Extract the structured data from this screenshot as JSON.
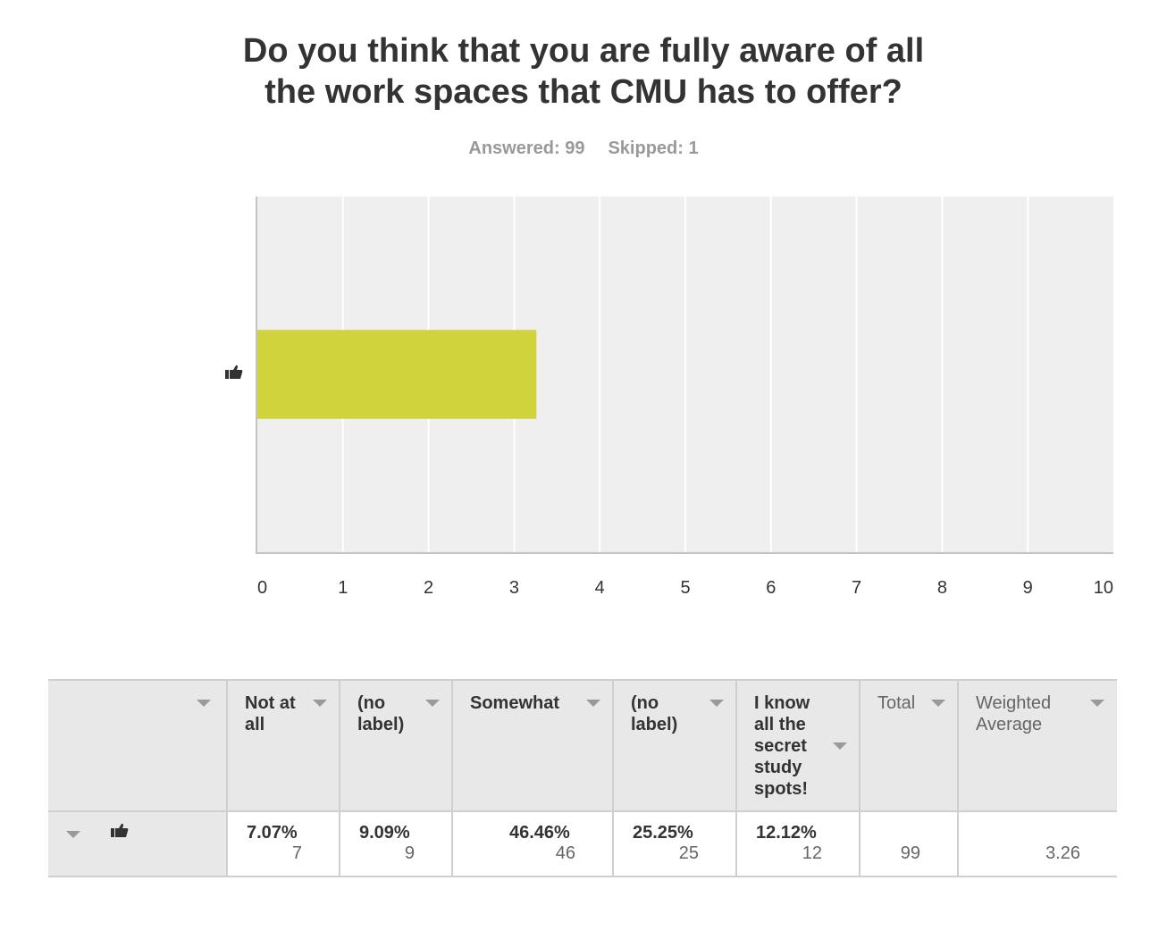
{
  "title": {
    "line1": "Do you think that you are fully aware of all",
    "line2": "the work spaces that CMU has to offer?"
  },
  "stats": {
    "answered": "Answered: 99",
    "skipped": "Skipped: 1"
  },
  "colors": {
    "bar": "#d0d33c",
    "plot_bg": "#efefef",
    "grid": "#ffffff",
    "axis": "#c4c4c4"
  },
  "chart_data": {
    "type": "bar",
    "orientation": "horizontal",
    "categories": [
      "thumbs-up-icon"
    ],
    "values": [
      3.26
    ],
    "xlim": [
      0,
      10
    ],
    "xticks": [
      "0",
      "1",
      "2",
      "3",
      "4",
      "5",
      "6",
      "7",
      "8",
      "9",
      "10"
    ],
    "title": "Do you think that you are fully aware of all the work spaces that CMU has to offer?",
    "xlabel": "",
    "ylabel": "",
    "grid": true
  },
  "table": {
    "headers": [
      {
        "lines": [
          ""
        ],
        "style": "none"
      },
      {
        "lines": [
          "Not at",
          "all"
        ],
        "style": "bold"
      },
      {
        "lines": [
          "(no",
          "label)"
        ],
        "style": "bold"
      },
      {
        "lines": [
          "Somewhat"
        ],
        "style": "bold"
      },
      {
        "lines": [
          "(no",
          "label)"
        ],
        "style": "bold"
      },
      {
        "lines": [
          "I know",
          "all the",
          "secret",
          "study",
          "spots!"
        ],
        "style": "bold"
      },
      {
        "lines": [
          "Total"
        ],
        "style": "light"
      },
      {
        "lines": [
          "Weighted",
          "Average"
        ],
        "style": "light"
      }
    ],
    "row": {
      "icon": "thumbs-up-icon",
      "cells": [
        {
          "pct": "7.07%",
          "count": "7"
        },
        {
          "pct": "9.09%",
          "count": "9"
        },
        {
          "pct": "46.46%",
          "count": "46"
        },
        {
          "pct": "25.25%",
          "count": "25"
        },
        {
          "pct": "12.12%",
          "count": "12"
        }
      ],
      "total": "99",
      "weighted_average": "3.26"
    }
  }
}
